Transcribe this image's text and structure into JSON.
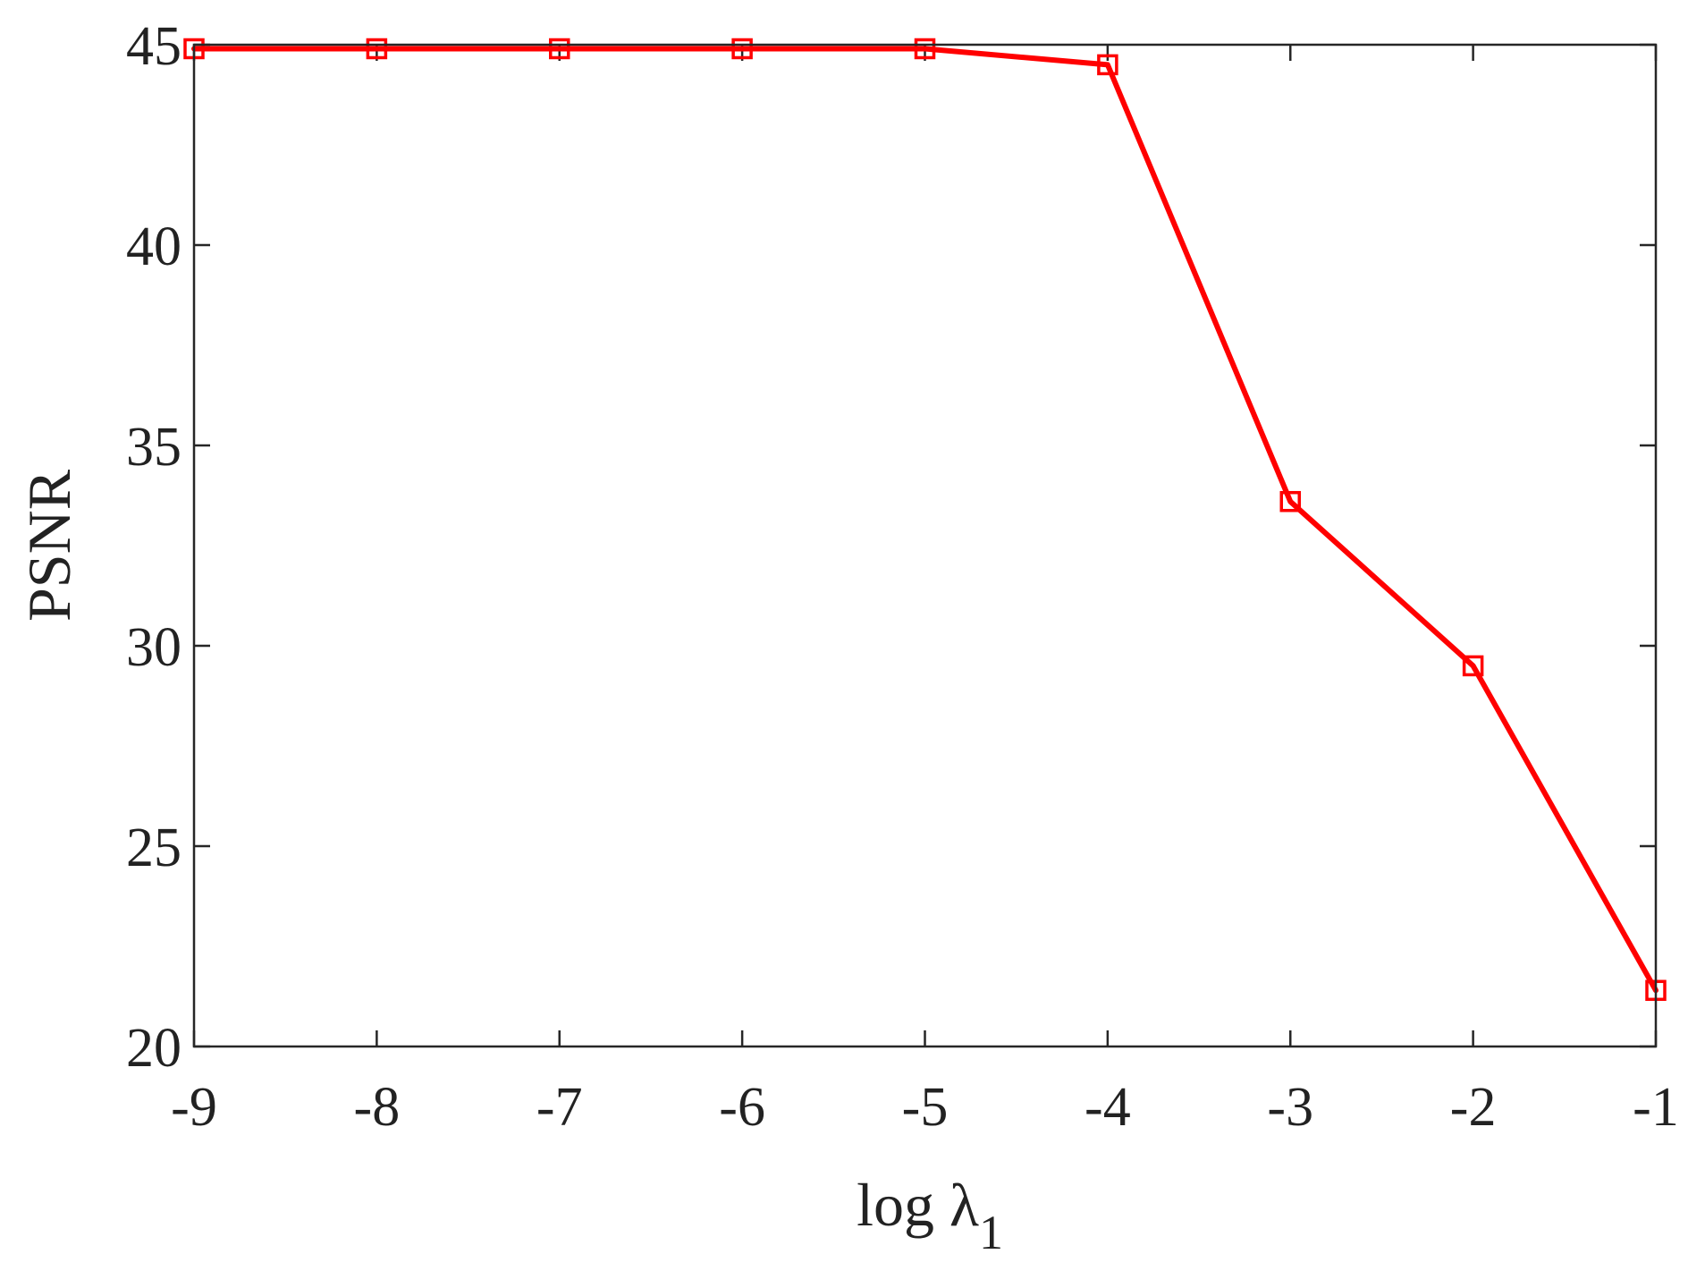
{
  "chart_data": {
    "type": "line",
    "xlabel": "log λ1",
    "xlabel_parts": {
      "main": "log λ",
      "subscript": "1"
    },
    "ylabel": "PSNR",
    "x": [
      -9,
      -8,
      -7,
      -6,
      -5,
      -4,
      -3,
      -2,
      -1
    ],
    "series": [
      {
        "values": [
          44.9,
          44.9,
          44.9,
          44.9,
          44.9,
          44.5,
          33.6,
          29.5,
          21.4
        ],
        "color": "#ff0000",
        "marker": "square"
      }
    ],
    "xlim": [
      -9,
      -1
    ],
    "ylim": [
      20,
      45
    ],
    "xticks": [
      -9,
      -8,
      -7,
      -6,
      -5,
      -4,
      -3,
      -2,
      -1
    ],
    "xtick_labels": [
      "-9",
      "-8",
      "-7",
      "-6",
      "-5",
      "-4",
      "-3",
      "-2",
      "-1"
    ],
    "yticks": [
      20,
      25,
      30,
      35,
      40,
      45
    ],
    "ytick_labels": [
      "20",
      "25",
      "30",
      "35",
      "40",
      "45"
    ],
    "grid": false,
    "box": true
  }
}
